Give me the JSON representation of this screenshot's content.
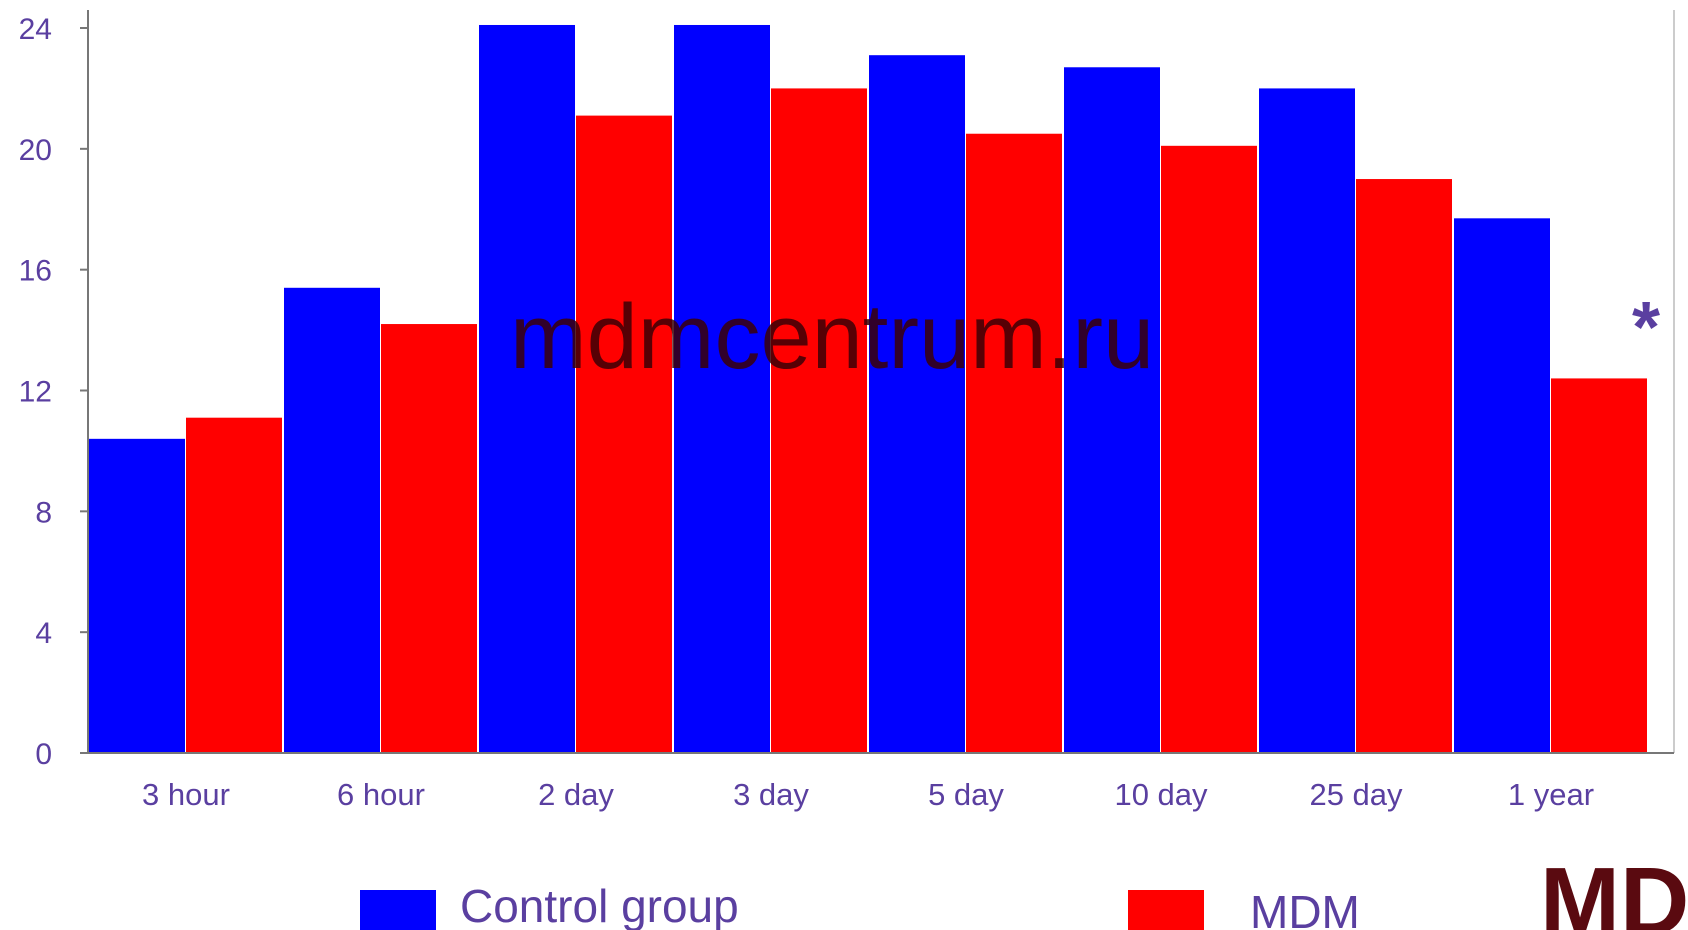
{
  "chart_data": {
    "type": "bar",
    "categories": [
      "3 hour",
      "6 hour",
      "2 day",
      "3 day",
      "5 day",
      "10 day",
      "25 day",
      "1 year"
    ],
    "series": [
      {
        "values": [
          10.4,
          15.4,
          24.1,
          24.1,
          23.1,
          22.7,
          22.0,
          17.7
        ]
      },
      {
        "values": [
          11.1,
          14.2,
          21.1,
          22.0,
          20.5,
          20.1,
          19.0,
          12.4
        ]
      }
    ],
    "legend": [
      {
        "label": "Control group"
      },
      {
        "label": "MDM"
      }
    ],
    "ylim": [
      0,
      24
    ],
    "yticks": [
      0,
      4,
      8,
      12,
      16,
      20,
      24
    ],
    "grid": false,
    "legend_placement": "bottom",
    "annotation": "*",
    "watermark": "mdmcentrum.ru",
    "logo_text": "MD",
    "colors": {
      "series_1": "#0000ff",
      "series_2": "#ff0000",
      "axis": "#777777",
      "text": "#5a3fa0",
      "logo": "#5a0a10"
    }
  }
}
